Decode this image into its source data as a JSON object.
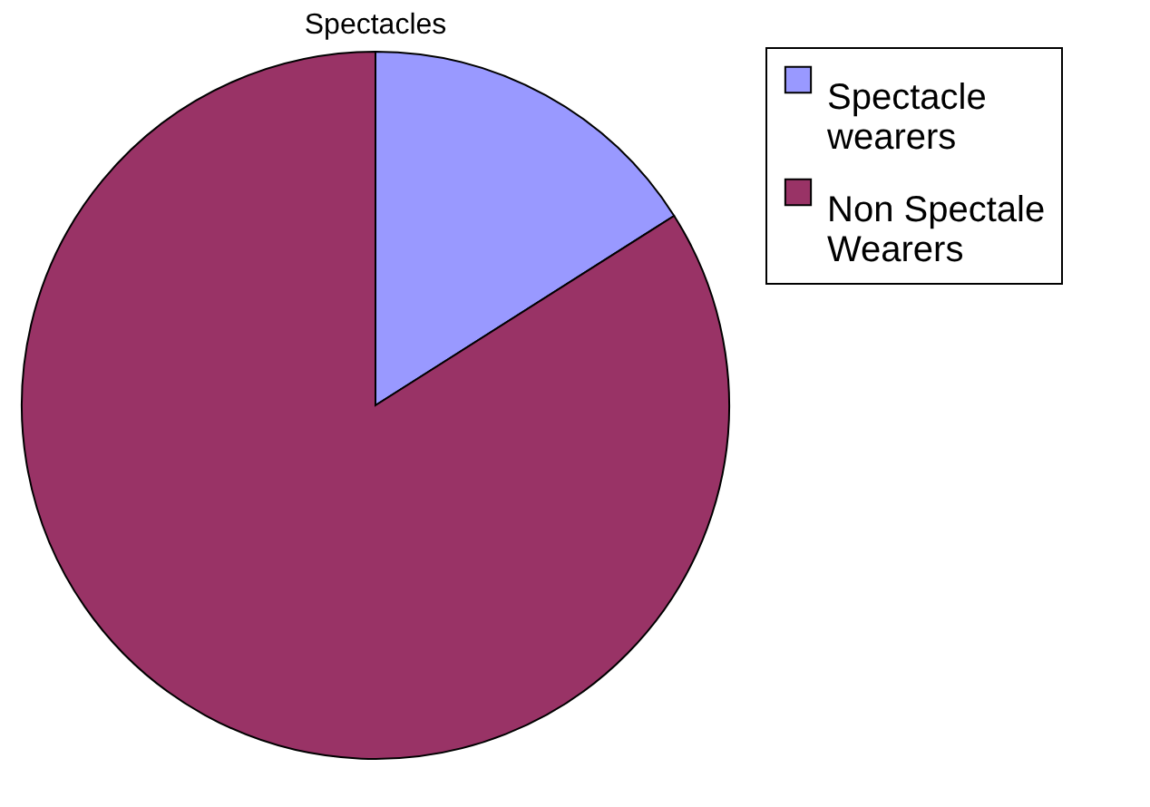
{
  "chart_data": {
    "type": "pie",
    "title": "Spectacles",
    "categories": [
      "Spectacle wearers",
      "Non Spectale Wearers"
    ],
    "values": [
      16,
      84
    ],
    "colors": [
      "#9999ff",
      "#993366"
    ],
    "legend": "right"
  }
}
